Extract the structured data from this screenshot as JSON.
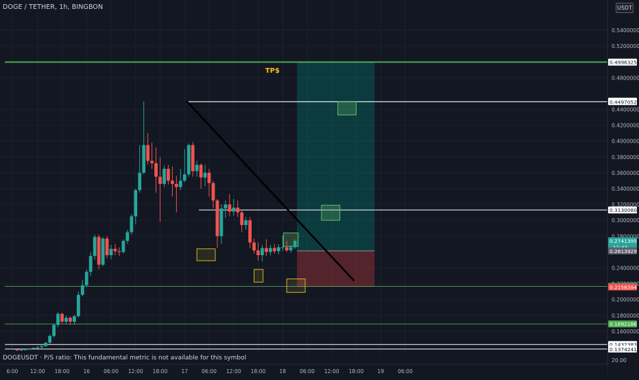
{
  "header": {
    "title": "DOGE / TETHER, 1h, BINGBON",
    "currency": "USDT"
  },
  "footer": {
    "status_note": "DOGEUSDT · P/S ratio: This fundamental metric is not available for this symbol",
    "volume_scale_value": "20.00"
  },
  "colors": {
    "background": "#131722",
    "up_candle": "#26a69a",
    "down_candle": "#ef5350",
    "tp_line": "#4caf50",
    "profit_zone": "#00897b",
    "loss_zone": "#8b2f35",
    "trendline": "#000000",
    "level_line_white": "#ffffff",
    "level_line_green": "#66bb6a",
    "annotation_gold": "#f2c511",
    "box_green": "#66bb6a",
    "box_yellow": "#d9b526"
  },
  "chart_data": {
    "type": "candlestick",
    "symbol": "DOGEUSDT",
    "ylim": [
      0.134,
      0.558
    ],
    "price_axis_ticks": [
      {
        "value": 0.54,
        "label": "0.5400000"
      },
      {
        "value": 0.52,
        "label": "0.5200000"
      },
      {
        "value": 0.48,
        "label": "0.4800000"
      },
      {
        "value": 0.44,
        "label": "0.4400000"
      },
      {
        "value": 0.42,
        "label": "0.4200000"
      },
      {
        "value": 0.4,
        "label": "0.4000000"
      },
      {
        "value": 0.38,
        "label": "0.3800000"
      },
      {
        "value": 0.36,
        "label": "0.3600000"
      },
      {
        "value": 0.34,
        "label": "0.3400000"
      },
      {
        "value": 0.32,
        "label": "0.3200000"
      },
      {
        "value": 0.3,
        "label": "0.3000000"
      },
      {
        "value": 0.28,
        "label": "0.2800000"
      },
      {
        "value": 0.24,
        "label": "0.2400000"
      },
      {
        "value": 0.22,
        "label": "0.2200000"
      },
      {
        "value": 0.2,
        "label": "0.2000000"
      },
      {
        "value": 0.18,
        "label": "0.1800000"
      },
      {
        "value": 0.16,
        "label": "0.1600000"
      }
    ],
    "time_axis_ticks": [
      {
        "slot": -1.2,
        "label": "6:00"
      },
      {
        "slot": 5,
        "label": "12:00"
      },
      {
        "slot": 11,
        "label": "18:00"
      },
      {
        "slot": 17,
        "label": "16"
      },
      {
        "slot": 23,
        "label": "06:00"
      },
      {
        "slot": 29,
        "label": "12:00"
      },
      {
        "slot": 35,
        "label": "18:00"
      },
      {
        "slot": 41,
        "label": "17"
      },
      {
        "slot": 47,
        "label": "06:00"
      },
      {
        "slot": 53,
        "label": "12:00"
      },
      {
        "slot": 59,
        "label": "18:00"
      },
      {
        "slot": 65,
        "label": "18"
      },
      {
        "slot": 71,
        "label": "06:00"
      },
      {
        "slot": 77,
        "label": "12:00"
      },
      {
        "slot": 83,
        "label": "18:00"
      },
      {
        "slot": 89,
        "label": "19"
      },
      {
        "slot": 95,
        "label": "06:00"
      }
    ],
    "candles": [
      [
        0.137,
        0.1374,
        0.1352,
        0.1358
      ],
      [
        0.1358,
        0.1372,
        0.135,
        0.1365
      ],
      [
        0.1365,
        0.138,
        0.1355,
        0.1372
      ],
      [
        0.1372,
        0.139,
        0.1362,
        0.138
      ],
      [
        0.138,
        0.1395,
        0.137,
        0.1388
      ],
      [
        0.1388,
        0.141,
        0.1378,
        0.1398
      ],
      [
        0.1398,
        0.142,
        0.1385,
        0.1412
      ],
      [
        0.1412,
        0.146,
        0.1405,
        0.1455
      ],
      [
        0.1455,
        0.156,
        0.144,
        0.154
      ],
      [
        0.154,
        0.17,
        0.152,
        0.168
      ],
      [
        0.168,
        0.184,
        0.165,
        0.182
      ],
      [
        0.182,
        0.183,
        0.17,
        0.172
      ],
      [
        0.172,
        0.18,
        0.169,
        0.177
      ],
      [
        0.177,
        0.179,
        0.168,
        0.172
      ],
      [
        0.172,
        0.181,
        0.168,
        0.179
      ],
      [
        0.179,
        0.21,
        0.177,
        0.206
      ],
      [
        0.206,
        0.225,
        0.204,
        0.218
      ],
      [
        0.218,
        0.238,
        0.216,
        0.235
      ],
      [
        0.235,
        0.26,
        0.23,
        0.255
      ],
      [
        0.255,
        0.282,
        0.25,
        0.279
      ],
      [
        0.279,
        0.282,
        0.238,
        0.244
      ],
      [
        0.244,
        0.279,
        0.242,
        0.277
      ],
      [
        0.277,
        0.28,
        0.252,
        0.256
      ],
      [
        0.256,
        0.269,
        0.251,
        0.264
      ],
      [
        0.264,
        0.27,
        0.256,
        0.261
      ],
      [
        0.261,
        0.266,
        0.255,
        0.26
      ],
      [
        0.26,
        0.276,
        0.258,
        0.274
      ],
      [
        0.274,
        0.288,
        0.27,
        0.285
      ],
      [
        0.285,
        0.308,
        0.282,
        0.305
      ],
      [
        0.305,
        0.34,
        0.295,
        0.338
      ],
      [
        0.338,
        0.395,
        0.335,
        0.36
      ],
      [
        0.36,
        0.45,
        0.358,
        0.395
      ],
      [
        0.395,
        0.41,
        0.37,
        0.375
      ],
      [
        0.375,
        0.398,
        0.365,
        0.372
      ],
      [
        0.372,
        0.392,
        0.335,
        0.355
      ],
      [
        0.355,
        0.38,
        0.298,
        0.346
      ],
      [
        0.346,
        0.369,
        0.342,
        0.365
      ],
      [
        0.365,
        0.37,
        0.345,
        0.35
      ],
      [
        0.35,
        0.368,
        0.33,
        0.346
      ],
      [
        0.346,
        0.356,
        0.31,
        0.342
      ],
      [
        0.342,
        0.365,
        0.338,
        0.35
      ],
      [
        0.35,
        0.39,
        0.348,
        0.358
      ],
      [
        0.358,
        0.397,
        0.355,
        0.395
      ],
      [
        0.395,
        0.399,
        0.355,
        0.362
      ],
      [
        0.362,
        0.375,
        0.355,
        0.37
      ],
      [
        0.37,
        0.372,
        0.34,
        0.354
      ],
      [
        0.354,
        0.37,
        0.343,
        0.36
      ],
      [
        0.36,
        0.365,
        0.33,
        0.347
      ],
      [
        0.347,
        0.35,
        0.315,
        0.325
      ],
      [
        0.325,
        0.327,
        0.265,
        0.28
      ],
      [
        0.28,
        0.32,
        0.27,
        0.315
      ],
      [
        0.315,
        0.325,
        0.303,
        0.32
      ],
      [
        0.32,
        0.333,
        0.305,
        0.311
      ],
      [
        0.311,
        0.327,
        0.306,
        0.316
      ],
      [
        0.316,
        0.325,
        0.304,
        0.31
      ],
      [
        0.31,
        0.313,
        0.285,
        0.294
      ],
      [
        0.294,
        0.304,
        0.288,
        0.3
      ],
      [
        0.3,
        0.304,
        0.265,
        0.272
      ],
      [
        0.272,
        0.277,
        0.258,
        0.262
      ],
      [
        0.262,
        0.272,
        0.249,
        0.256
      ],
      [
        0.256,
        0.269,
        0.248,
        0.265
      ],
      [
        0.265,
        0.276,
        0.255,
        0.26
      ],
      [
        0.26,
        0.269,
        0.256,
        0.265
      ],
      [
        0.265,
        0.27,
        0.258,
        0.261
      ],
      [
        0.261,
        0.27,
        0.257,
        0.266
      ],
      [
        0.266,
        0.281,
        0.261,
        0.266
      ],
      [
        0.266,
        0.274,
        0.26,
        0.262
      ],
      [
        0.262,
        0.269,
        0.259,
        0.266
      ],
      [
        0.266,
        0.276,
        0.264,
        0.2741
      ]
    ],
    "horizontal_lines": [
      {
        "value": 0.4997538,
        "color": "tp_line",
        "width": 2,
        "from_slot": -3
      },
      {
        "value": 0.4497052,
        "color": "level_line_white",
        "width": 1.2,
        "from_slot": 41.5
      },
      {
        "value": 0.313008,
        "color": "level_line_white",
        "width": 1,
        "from_slot": 44.5
      },
      {
        "value": 0.2165816,
        "color": "level_line_green",
        "width": 0.8,
        "from_slot": -3
      },
      {
        "value": 0.1692186,
        "color": "level_line_green",
        "width": 0.8,
        "from_slot": -3
      },
      {
        "value": 0.1432383,
        "color": "level_line_white",
        "width": 1,
        "from_slot": -3
      },
      {
        "value": 0.1374241,
        "color": "level_line_white",
        "width": 1,
        "from_slot": -3
      }
    ],
    "price_labels": [
      {
        "value": 0.4997538,
        "label": "0.4997538",
        "bg": "#4caf50",
        "fg": "#ffffff"
      },
      {
        "value": 0.4996325,
        "label": "0.4996325",
        "bg": "#ffffff",
        "fg": "#131722"
      },
      {
        "value": 0.4503938,
        "label": "0.4503938",
        "bg": "#ffffff",
        "fg": "#131722"
      },
      {
        "value": 0.4497052,
        "label": "0.4497052",
        "bg": "#ffffff",
        "fg": "#131722"
      },
      {
        "value": 0.313008,
        "label": "0.3130080",
        "bg": "#ffffff",
        "fg": "#131722"
      },
      {
        "value": 0.2741395,
        "label": "0.2741395",
        "sub": "11:43",
        "bg": "#26a69a",
        "fg": "#ffffff"
      },
      {
        "value": 0.2613929,
        "label": "0.2613929",
        "bg": "#5d606b",
        "fg": "#ffffff"
      },
      {
        "value": 0.2165816,
        "label": "0.2165816",
        "bg": "#4caf50",
        "fg": "#ffffff"
      },
      {
        "value": 0.2158394,
        "label": "0.2158394",
        "bg": "#ef5350",
        "fg": "#ffffff"
      },
      {
        "value": 0.1692186,
        "label": "0.1692186",
        "bg": "#4caf50",
        "fg": "#ffffff"
      },
      {
        "value": 0.1432383,
        "label": "0.1432383",
        "bg": "#ffffff",
        "fg": "#131722"
      },
      {
        "value": 0.1374241,
        "label": "0.1374241",
        "bg": "#ffffff",
        "fg": "#131722"
      }
    ],
    "position_tool": {
      "entry": 0.2613929,
      "target": 0.4997538,
      "stop": 0.2158394,
      "from_slot": 68.5,
      "to_slot": 87.5
    },
    "trendline": {
      "from": [
        41.5,
        0.4503938
      ],
      "to": [
        82.5,
        0.2235
      ]
    },
    "annotations": [
      {
        "text": "TP$",
        "slot": 62.5,
        "value": 0.49
      }
    ],
    "marker_boxes": [
      {
        "kind": "yellow",
        "slot_from": 44.0,
        "slot_to": 48.5,
        "y_top": 0.264,
        "y_bottom": 0.249
      },
      {
        "kind": "yellow",
        "slot_from": 58.0,
        "slot_to": 60.2,
        "y_top": 0.238,
        "y_bottom": 0.222
      },
      {
        "kind": "yellow",
        "slot_from": 66.0,
        "slot_to": 70.5,
        "y_top": 0.226,
        "y_bottom": 0.209
      },
      {
        "kind": "green",
        "slot_from": 65.2,
        "slot_to": 68.8,
        "y_top": 0.284,
        "y_bottom": 0.267
      },
      {
        "kind": "green",
        "slot_from": 74.5,
        "slot_to": 79.0,
        "y_top": 0.319,
        "y_bottom": 0.3
      },
      {
        "kind": "green",
        "slot_from": 78.5,
        "slot_to": 83.0,
        "y_top": 0.45,
        "y_bottom": 0.433
      }
    ]
  }
}
